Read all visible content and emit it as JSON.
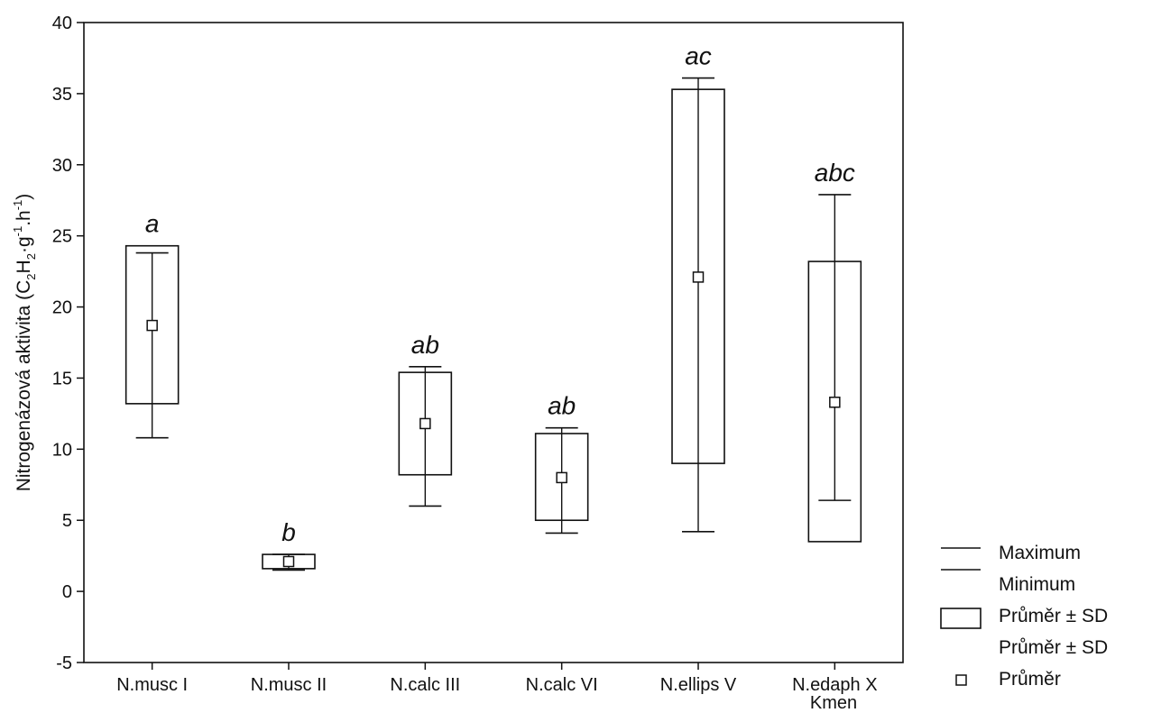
{
  "chart_data": {
    "type": "box",
    "title": "",
    "xlabel": "Kmen",
    "ylabel": {
      "prefix": "Nitrogenázová aktivita (C",
      "sub1": "2",
      "mid1": "H",
      "sub2": "2",
      "mid2": "·g",
      "sup1": "-1",
      "mid3": ".h",
      "sup2": "-1",
      "suffix": ")"
    },
    "ylim": [
      -5,
      40
    ],
    "yticks": [
      -5,
      0,
      5,
      10,
      15,
      20,
      25,
      30,
      35,
      40
    ],
    "grid": false,
    "legend_position": "bottom-right",
    "categories": [
      "N.musc I",
      "N.musc II",
      "N.calc III",
      "N.calc VI",
      "N.ellips V",
      "N.edaph X"
    ],
    "mean": [
      18.7,
      2.1,
      11.8,
      8.0,
      22.1,
      13.3
    ],
    "sd_lower": [
      13.2,
      1.6,
      8.2,
      5.0,
      9.0,
      3.5
    ],
    "sd_upper": [
      24.3,
      2.6,
      15.4,
      11.1,
      35.3,
      23.2
    ],
    "min": [
      10.8,
      1.5,
      6.0,
      4.1,
      4.2,
      6.4
    ],
    "max": [
      23.8,
      2.6,
      15.8,
      11.5,
      36.1,
      27.9
    ],
    "group_labels": [
      "a",
      "b",
      "ab",
      "ab",
      "ac",
      "abc"
    ],
    "legend": [
      {
        "symbol": "line-high",
        "label": "Maximum"
      },
      {
        "symbol": "line-low",
        "label": "Minimum"
      },
      {
        "symbol": "box",
        "label": "Průměr ± SD"
      },
      {
        "symbol": "none",
        "label": "Průměr ± SD"
      },
      {
        "symbol": "square",
        "label": "Průměr"
      }
    ]
  }
}
